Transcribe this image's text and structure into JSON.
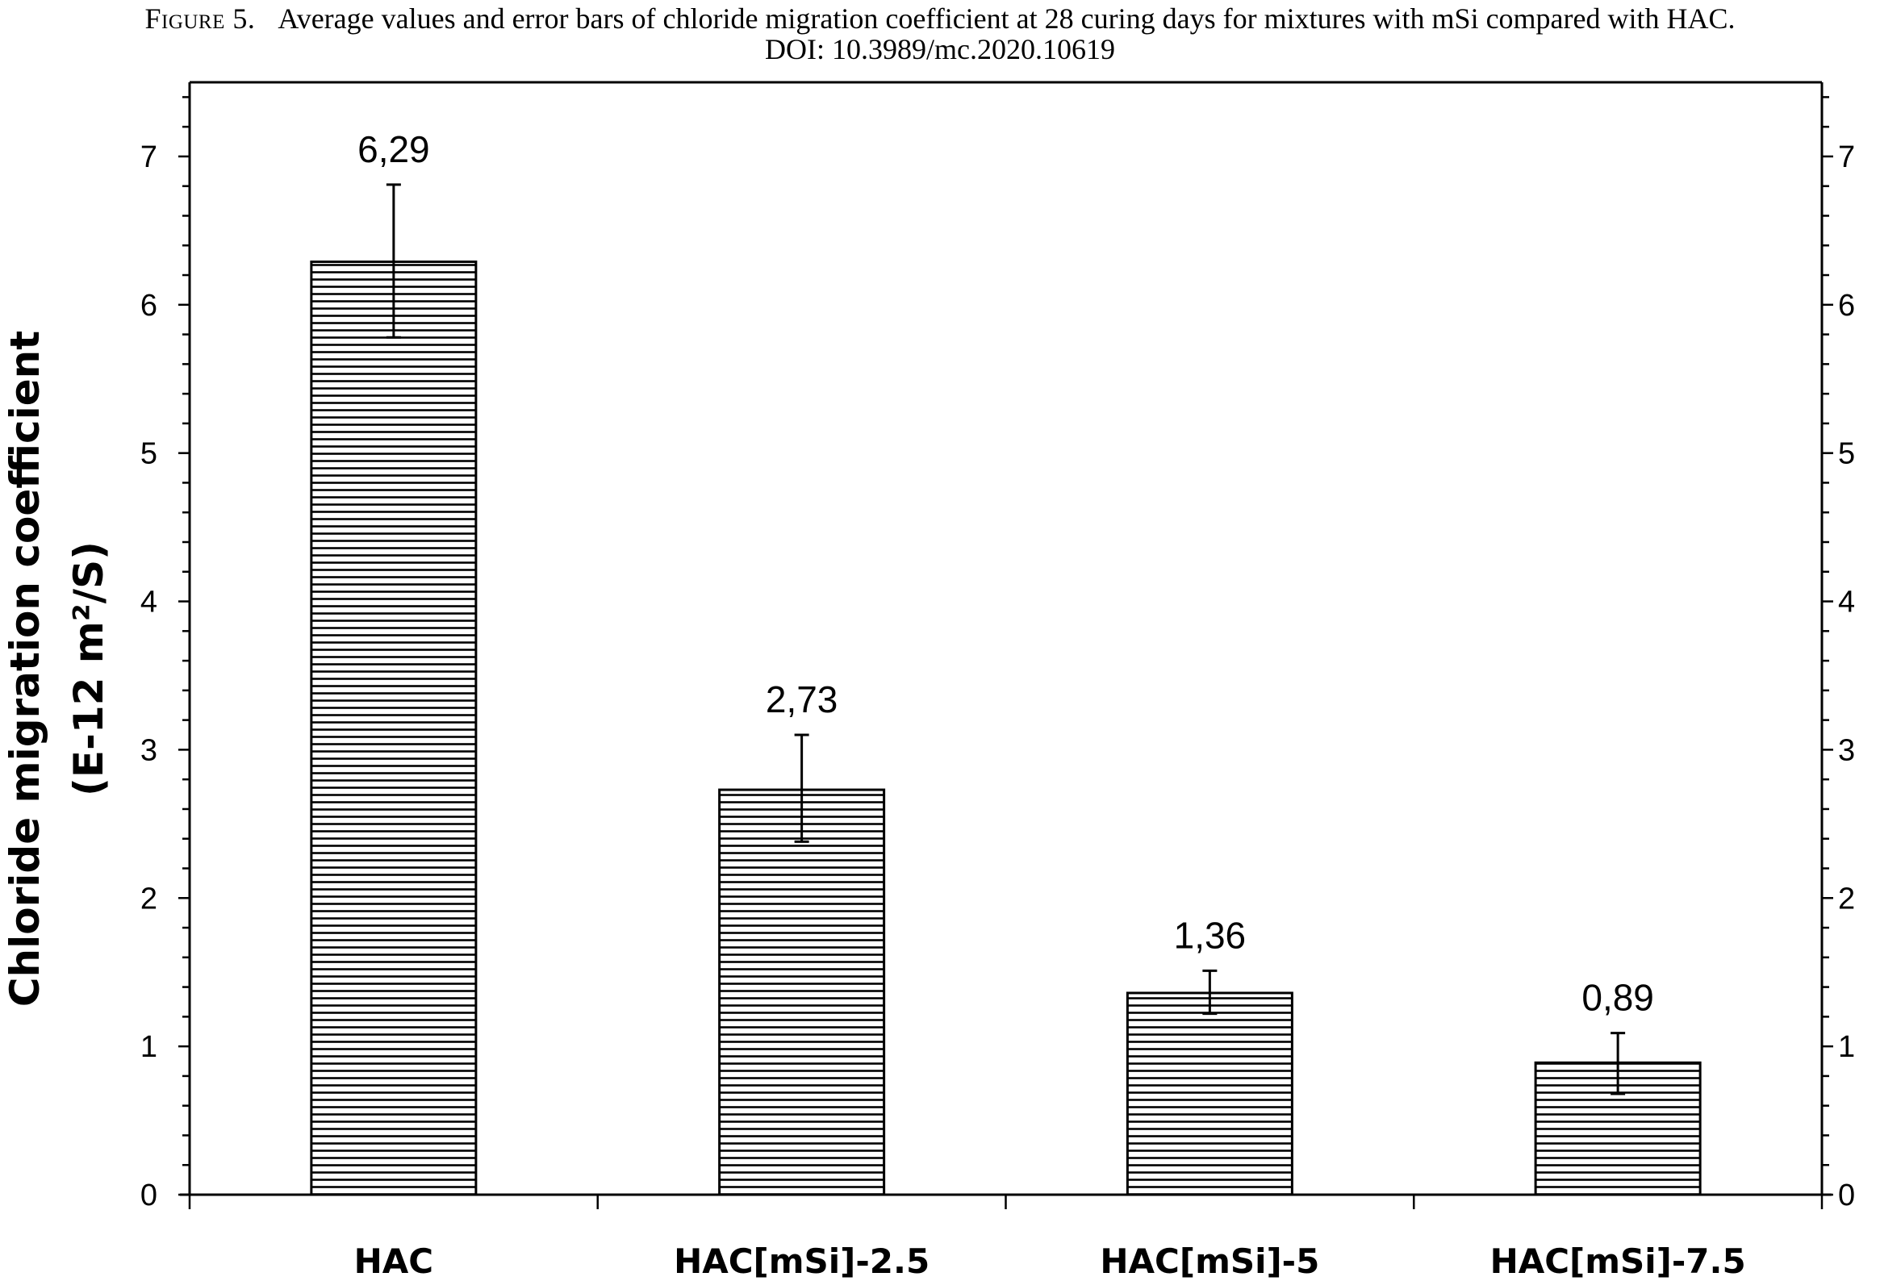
{
  "figure": {
    "caption_label": "Figure 5.",
    "caption_text": "Average values and error bars of chloride migration coefficient at 28 curing days for mixtures with mSi compared with HAC.",
    "doi": "DOI: 10.3989/mc.2020.10619"
  },
  "chart_data": {
    "type": "bar",
    "title": "",
    "xlabel": "",
    "ylabel_line1": "Chloride migration coefficient",
    "ylabel_line2": "(E-12 m²/S)",
    "ylim": [
      0,
      7.5
    ],
    "yticks": [
      0,
      1,
      2,
      3,
      4,
      5,
      6,
      7
    ],
    "right_axis_ticks": [
      0,
      1,
      2,
      3,
      4,
      5,
      6,
      7
    ],
    "categories": [
      "HAC",
      "HAC[mSi]-2.5",
      "HAC[mSi]-5",
      "HAC[mSi]-7.5"
    ],
    "values": [
      6.29,
      2.73,
      1.36,
      0.89
    ],
    "value_labels": [
      "6,29",
      "2,73",
      "1,36",
      "0,89"
    ],
    "error_low": [
      5.78,
      2.38,
      1.22,
      0.68
    ],
    "error_high": [
      6.81,
      3.1,
      1.51,
      1.09
    ],
    "bar_pattern": "horizontal-stripes",
    "bar_fill": "#ffffff",
    "stroke_color": "#000000",
    "grid": false,
    "legend": "none"
  }
}
